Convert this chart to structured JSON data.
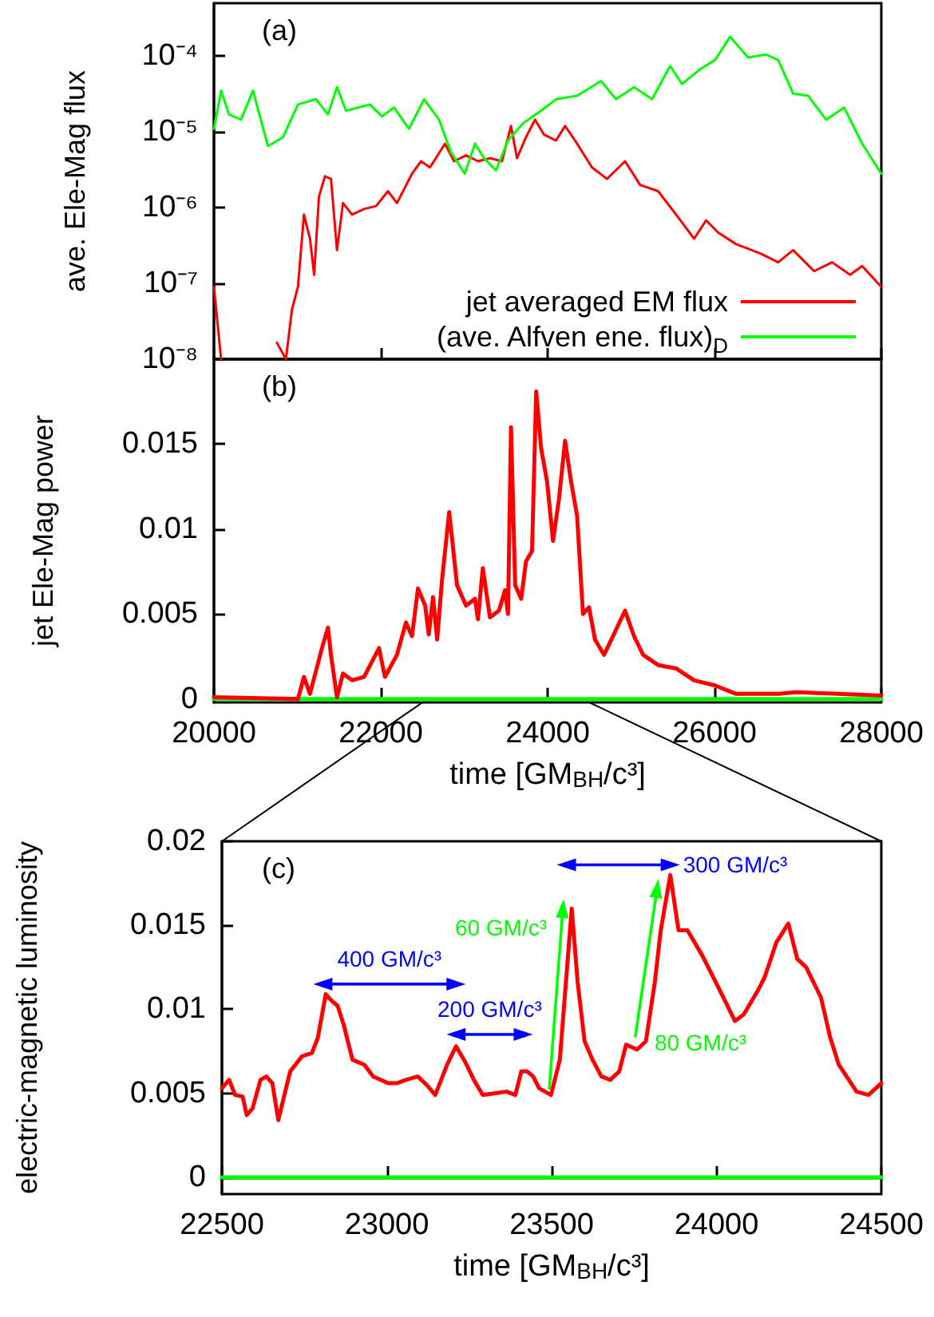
{
  "chart_data": [
    {
      "type": "line",
      "annotations": [
        "(a)"
      ],
      "ylabel": "ave. Ele-Mag flux",
      "log": "y",
      "legend": "bottom right",
      "tick_labels": "y",
      "line_style": "solid",
      "xlim": [
        20000,
        28000
      ],
      "xticks": [
        20000,
        22000,
        24000,
        26000,
        28000
      ],
      "ylim": [
        1e-08,
        0.0005
      ],
      "yticks": [
        {
          "value": 1e-08,
          "label": "10⁻⁸"
        },
        {
          "value": 1e-07,
          "label": "10⁻⁷"
        },
        {
          "value": 1e-06,
          "label": "10⁻⁶"
        },
        {
          "value": 1e-05,
          "label": "10⁻⁵"
        },
        {
          "value": 0.0001,
          "label": "10⁻⁴"
        }
      ],
      "series": [
        {
          "name": "jet averaged EM flux",
          "color": "#ff0000",
          "x": [
            20000,
            20086,
            20400,
            20755,
            20863,
            20935,
            21007,
            21079,
            21151,
            21201,
            21259,
            21331,
            21403,
            21475,
            21547,
            21655,
            21799,
            21943,
            22086,
            22194,
            22374,
            22482,
            22590,
            22770,
            22878,
            23022,
            23165,
            23309,
            23453,
            23561,
            23633,
            23741,
            23849,
            23957,
            24101,
            24209,
            24353,
            24532,
            24712,
            24928,
            25108,
            25324,
            25540,
            25756,
            25899,
            26043,
            26259,
            26547,
            26763,
            26943,
            27194,
            27410,
            27626,
            27770,
            28000
          ],
          "values": [
            9e-08,
            1e-08,
            null,
            1.65e-08,
            1e-08,
            4.5e-08,
            9e-08,
            8.1e-07,
            3.9e-07,
            1.3e-07,
            1.4e-06,
            2.6e-06,
            2.4e-06,
            2.75e-07,
            1.15e-06,
            8.1e-07,
            9.6e-07,
            1.05e-06,
            1.65e-06,
            1.15e-06,
            2.8e-06,
            4.1e-06,
            3.4e-06,
            7e-06,
            4.1e-06,
            4.9e-06,
            4.1e-06,
            4.5e-06,
            4.1e-06,
            1.2e-05,
            4.5e-06,
            8.5e-06,
            1.45e-05,
            9.2e-06,
            7.7e-06,
            1.2e-05,
            7e-06,
            3.4e-06,
            2.4e-06,
            4.1e-06,
            2e-06,
            1.65e-06,
            8.1e-07,
            3.9e-07,
            6.8e-07,
            4.7e-07,
            3.3e-07,
            2.5e-07,
            1.9e-07,
            2.75e-07,
            1.45e-07,
            1.9e-07,
            1.3e-07,
            1.7e-07,
            9e-08
          ]
        },
        {
          "name": "(ave. Alfven ene. flux)$_{D}$",
          "color": "#00ff00",
          "x": [
            20000,
            20086,
            20180,
            20324,
            20468,
            20647,
            20827,
            21007,
            21223,
            21367,
            21475,
            21583,
            21870,
            22014,
            22158,
            22338,
            22518,
            22698,
            22842,
            23007,
            23129,
            23237,
            23381,
            23525,
            23705,
            23921,
            24101,
            24353,
            24640,
            24820,
            25036,
            25252,
            25468,
            25611,
            25827,
            26007,
            26187,
            26403,
            26619,
            26763,
            26943,
            27122,
            27338,
            27554,
            27770,
            28000
          ],
          "values": [
            1.1e-05,
            3.5e-05,
            1.7e-05,
            1.45e-05,
            3.5e-05,
            6.5e-06,
            8.5e-06,
            2.3e-05,
            2.7e-05,
            1.7e-05,
            3.9e-05,
            1.9e-05,
            2.3e-05,
            1.6e-05,
            2.1e-05,
            1.1e-05,
            2.7e-05,
            1.45e-05,
            5.4e-06,
            2.8e-06,
            7e-06,
            4.5e-06,
            3.1e-06,
            7.7e-06,
            1.3e-05,
            1.9e-05,
            2.7e-05,
            3e-05,
            4.7e-05,
            2.7e-05,
            3.9e-05,
            2.7e-05,
            7.4e-05,
            4.3e-05,
            6.7e-05,
            8.9e-05,
            0.00018,
            9.6e-05,
            0.000105,
            8.9e-05,
            3.2e-05,
            3e-05,
            1.45e-05,
            2.1e-05,
            7e-06,
            2.8e-06
          ]
        }
      ]
    },
    {
      "type": "line",
      "annotations": [
        "(b)"
      ],
      "xlabel": "time [GM$_{BH}$/c³]",
      "ylabel": "jet Ele-Mag power",
      "line_style": "solid",
      "xlim": [
        20000,
        28000
      ],
      "xticks": [
        20000,
        22000,
        24000,
        26000,
        28000
      ],
      "ylim": [
        -0.0002,
        0.02
      ],
      "yticks": [
        0,
        0.005,
        0.01,
        0.015
      ],
      "series": [
        {
          "color": "#00ff00",
          "x": [
            20000,
            28000
          ],
          "values": [
            0,
            0
          ]
        },
        {
          "color": "#ff0000",
          "x": [
            20000,
            21007,
            21079,
            21151,
            21295,
            21367,
            21403,
            21475,
            21547,
            21655,
            21799,
            21979,
            22050,
            22194,
            22302,
            22374,
            22446,
            22532,
            22575,
            22626,
            22676,
            22734,
            22820,
            22914,
            23022,
            23129,
            23165,
            23223,
            23309,
            23417,
            23489,
            23525,
            23561,
            23611,
            23683,
            23741,
            23813,
            23863,
            23921,
            23993,
            24065,
            24137,
            24209,
            24281,
            24353,
            24424,
            24496,
            24568,
            24676,
            24784,
            24928,
            25036,
            25144,
            25324,
            25540,
            25756,
            26007,
            26259,
            26763,
            26979,
            27482,
            28000
          ],
          "values": [
            0.0001,
            0.0,
            0.0013,
            0.0003,
            0.003,
            0.0042,
            0.0026,
            0.0001,
            0.0015,
            0.0011,
            0.0013,
            0.003,
            0.0013,
            0.0026,
            0.0045,
            0.0037,
            0.0065,
            0.0055,
            0.0038,
            0.006,
            0.0035,
            0.007,
            0.011,
            0.0067,
            0.0055,
            0.0059,
            0.0047,
            0.0077,
            0.0048,
            0.0052,
            0.0064,
            0.005,
            0.016,
            0.0067,
            0.0059,
            0.0081,
            0.0087,
            0.0181,
            0.0148,
            0.0128,
            0.0093,
            0.0118,
            0.0152,
            0.0128,
            0.0108,
            0.005,
            0.0054,
            0.0035,
            0.0026,
            0.0037,
            0.0052,
            0.0037,
            0.0026,
            0.002,
            0.0018,
            0.0011,
            0.0008,
            0.0003,
            0.0003,
            0.0004,
            0.0003,
            0.0002
          ]
        }
      ]
    },
    {
      "type": "line",
      "xlabel": "time [GM$_{BH}$/c³]",
      "ylabel": "electric-magnetic luminosity",
      "line_style": "solid",
      "annotations": [
        "(c)",
        "400 GM/c³",
        "200 GM/c³",
        "300 GM/c³",
        "60 GM/c³",
        "80 GM/c³"
      ],
      "xlim": [
        22500,
        24500
      ],
      "xticks": [
        22500,
        23000,
        23500,
        24000,
        24500
      ],
      "ylim": [
        -0.001,
        0.02
      ],
      "yticks": [
        0,
        0.005,
        0.01,
        0.015,
        0.02
      ],
      "series": [
        {
          "color": "#00ff00",
          "x": [
            22500,
            24500
          ],
          "values": [
            0,
            0
          ]
        },
        {
          "color": "#ff0000",
          "x": [
            22500,
            22522,
            22540,
            22563,
            22575,
            22593,
            22617,
            22635,
            22653,
            22671,
            22707,
            22743,
            22773,
            22791,
            22815,
            22833,
            22851,
            22869,
            22896,
            22932,
            22959,
            23004,
            23031,
            23058,
            23094,
            23121,
            23147,
            23183,
            23210,
            23237,
            23264,
            23291,
            23327,
            23363,
            23390,
            23408,
            23426,
            23444,
            23462,
            23498,
            23525,
            23561,
            23579,
            23600,
            23624,
            23651,
            23678,
            23705,
            23726,
            23759,
            23786,
            23813,
            23831,
            23860,
            23885,
            23912,
            23957,
            24011,
            24056,
            24083,
            24128,
            24146,
            24182,
            24218,
            24245,
            24272,
            24317,
            24344,
            24371,
            24425,
            24461,
            24500
          ],
          "values": [
            0.0053,
            0.0058,
            0.0049,
            0.0048,
            0.0037,
            0.0041,
            0.0058,
            0.006,
            0.0056,
            0.0034,
            0.0063,
            0.0072,
            0.0074,
            0.0083,
            0.0109,
            0.0105,
            0.0102,
            0.0091,
            0.007,
            0.0067,
            0.006,
            0.0056,
            0.0056,
            0.0058,
            0.006,
            0.0055,
            0.0049,
            0.0067,
            0.0078,
            0.0069,
            0.0058,
            0.0049,
            0.005,
            0.0051,
            0.0049,
            0.0063,
            0.0063,
            0.006,
            0.0053,
            0.0049,
            0.007,
            0.016,
            0.0116,
            0.0081,
            0.007,
            0.006,
            0.0058,
            0.0063,
            0.0079,
            0.0076,
            0.0081,
            0.0116,
            0.0147,
            0.018,
            0.0147,
            0.0147,
            0.0132,
            0.0111,
            0.0093,
            0.0097,
            0.0112,
            0.0119,
            0.014,
            0.0151,
            0.013,
            0.0125,
            0.0107,
            0.0084,
            0.0067,
            0.0051,
            0.0049,
            0.0056
          ]
        },
        {
          "color": "#0000ff",
          "marker": "triangle",
          "x": [
            22806,
            23210
          ],
          "values": [
            0.0115,
            0.0115
          ]
        },
        {
          "color": "#0000ff",
          "marker": "triangle",
          "x": [
            23210,
            23414
          ],
          "values": [
            0.0085,
            0.0085
          ]
        },
        {
          "color": "#0000ff",
          "marker": "triangle",
          "x": [
            23545,
            23860
          ],
          "values": [
            0.0186,
            0.0186
          ]
        },
        {
          "color": "#00ff00",
          "marker": "triangle",
          "x": [
            23493,
            23534
          ],
          "values": [
            0.0053,
            0.016
          ]
        },
        {
          "color": "#00ff00",
          "marker": "triangle",
          "x": [
            23754,
            23820
          ],
          "values": [
            0.0084,
            0.0172
          ]
        }
      ]
    }
  ]
}
